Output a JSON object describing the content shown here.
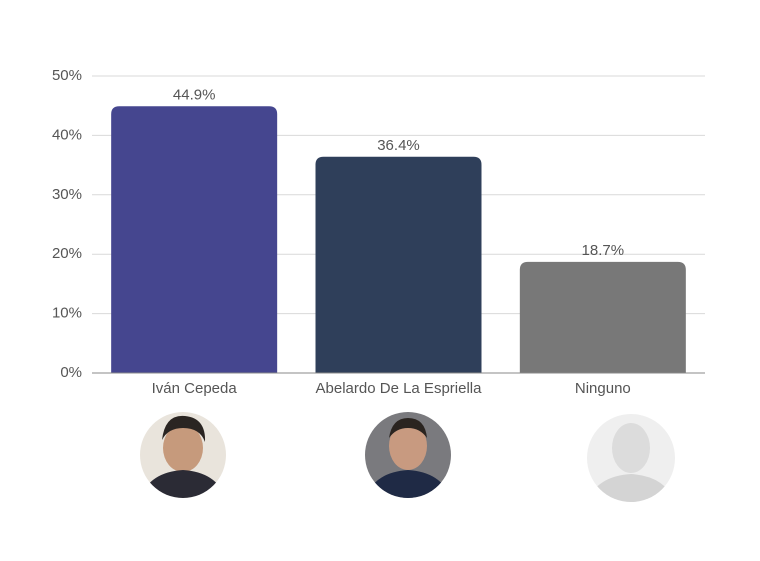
{
  "chart_data": {
    "type": "bar",
    "categories": [
      "Iván Cepeda",
      "Abelardo De La Espriella",
      "Ninguno"
    ],
    "values": [
      44.9,
      36.4,
      18.7
    ],
    "value_labels": [
      "44.9%",
      "36.4%",
      "18.7%"
    ],
    "colors": [
      "#45468f",
      "#2f3f5a",
      "#787878"
    ],
    "ylim": [
      0,
      50
    ],
    "yticks": [
      {
        "value": 0,
        "label": "0%"
      },
      {
        "value": 10,
        "label": "10%"
      },
      {
        "value": 20,
        "label": "20%"
      },
      {
        "value": 30,
        "label": "30%"
      },
      {
        "value": 40,
        "label": "40%"
      },
      {
        "value": 50,
        "label": "50%"
      }
    ],
    "grid": true
  }
}
